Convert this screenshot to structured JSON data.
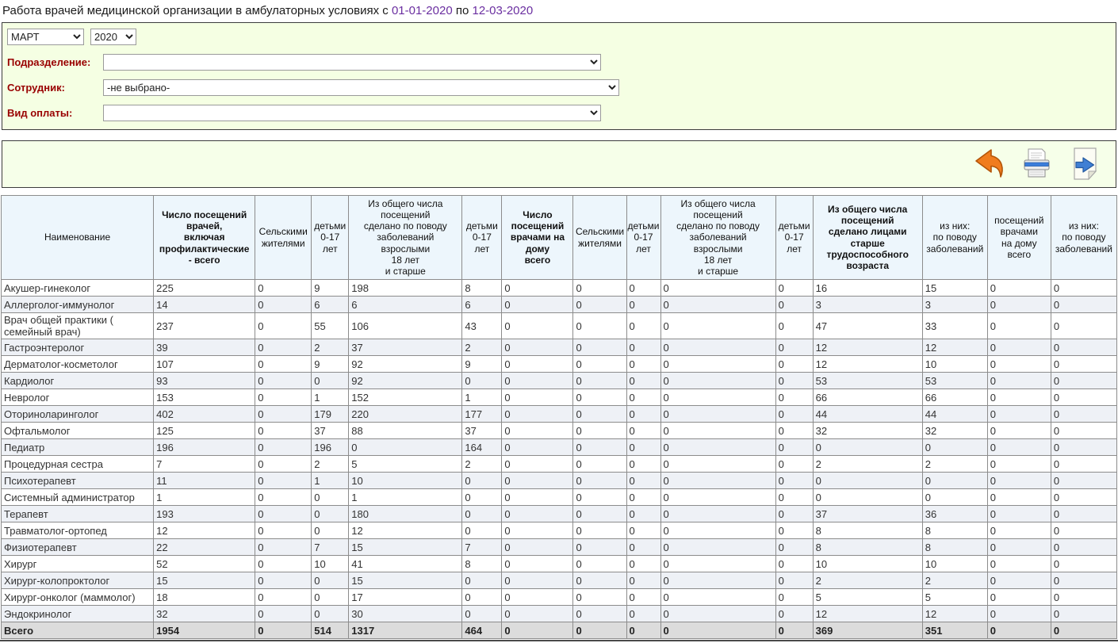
{
  "title": {
    "prefix": "Работа врачей медицинской организации в амбулаторных условиях с",
    "date_from": "01-01-2020",
    "to_word": "по",
    "date_to": "12-03-2020"
  },
  "filters": {
    "month": {
      "value": "МАРТ"
    },
    "year": {
      "value": "2020"
    },
    "department": {
      "label": "Подразделение:",
      "value": ""
    },
    "employee": {
      "label": "Сотрудник:",
      "value": "-не выбрано-"
    },
    "payment": {
      "label": "Вид оплаты:",
      "value": ""
    }
  },
  "toolbar": {
    "icons": [
      "back-arrow",
      "print",
      "export"
    ]
  },
  "table": {
    "headers": [
      {
        "text": "Наименование",
        "bold": false
      },
      {
        "text": "Число посещений\nврачей,\nвключая\nпрофилактические\n- всего",
        "bold": true
      },
      {
        "text": "Сельскими\nжителями",
        "bold": false
      },
      {
        "text": "детьми\n0-17\nлет",
        "bold": false
      },
      {
        "text": "Из общего числа\nпосещений\nсделано по поводу\nзаболеваний\nвзрослыми\n18 лет\nи старше",
        "bold": false
      },
      {
        "text": "детьми\n0-17\nлет",
        "bold": false
      },
      {
        "text": "Число\nпосещений\nврачами на\nдому\nвсего",
        "bold": true
      },
      {
        "text": "Сельскими\nжителями",
        "bold": false
      },
      {
        "text": "детьми\n0-17\nлет",
        "bold": false
      },
      {
        "text": "Из общего числа\nпосещений\nсделано по поводу\nзаболеваний\nвзрослыми\n18 лет\nи старше",
        "bold": false
      },
      {
        "text": "детьми\n0-17\nлет",
        "bold": false
      },
      {
        "text": "Из общего числа\nпосещений\nсделано лицами\nстарше\nтрудоспособного\nвозраста",
        "bold": true
      },
      {
        "text": "из них:\nпо поводу\nзаболеваний",
        "bold": false
      },
      {
        "text": "посещений\nврачами\nна дому\nвсего",
        "bold": false
      },
      {
        "text": "из них:\nпо поводу\nзаболеваний",
        "bold": false
      }
    ],
    "rows": [
      {
        "name": "Акушер-гинеколог",
        "values": [
          225,
          0,
          9,
          198,
          8,
          0,
          0,
          0,
          0,
          0,
          16,
          15,
          0,
          0
        ]
      },
      {
        "name": "Аллерголог-иммунолог",
        "values": [
          14,
          0,
          6,
          6,
          6,
          0,
          0,
          0,
          0,
          0,
          3,
          3,
          0,
          0
        ]
      },
      {
        "name": "Врач общей практики ( семейный врач)",
        "values": [
          237,
          0,
          55,
          106,
          43,
          0,
          0,
          0,
          0,
          0,
          47,
          33,
          0,
          0
        ]
      },
      {
        "name": "Гастроэнтеролог",
        "values": [
          39,
          0,
          2,
          37,
          2,
          0,
          0,
          0,
          0,
          0,
          12,
          12,
          0,
          0
        ]
      },
      {
        "name": "Дерматолог-косметолог",
        "values": [
          107,
          0,
          9,
          92,
          9,
          0,
          0,
          0,
          0,
          0,
          12,
          10,
          0,
          0
        ]
      },
      {
        "name": "Кардиолог",
        "values": [
          93,
          0,
          0,
          92,
          0,
          0,
          0,
          0,
          0,
          0,
          53,
          53,
          0,
          0
        ]
      },
      {
        "name": "Невролог",
        "values": [
          153,
          0,
          1,
          152,
          1,
          0,
          0,
          0,
          0,
          0,
          66,
          66,
          0,
          0
        ]
      },
      {
        "name": "Оториноларинголог",
        "values": [
          402,
          0,
          179,
          220,
          177,
          0,
          0,
          0,
          0,
          0,
          44,
          44,
          0,
          0
        ]
      },
      {
        "name": "Офтальмолог",
        "values": [
          125,
          0,
          37,
          88,
          37,
          0,
          0,
          0,
          0,
          0,
          32,
          32,
          0,
          0
        ]
      },
      {
        "name": "Педиатр",
        "values": [
          196,
          0,
          196,
          0,
          164,
          0,
          0,
          0,
          0,
          0,
          0,
          0,
          0,
          0
        ]
      },
      {
        "name": "Процедурная сестра",
        "values": [
          7,
          0,
          2,
          5,
          2,
          0,
          0,
          0,
          0,
          0,
          2,
          2,
          0,
          0
        ]
      },
      {
        "name": "Психотерапевт",
        "values": [
          11,
          0,
          1,
          10,
          0,
          0,
          0,
          0,
          0,
          0,
          0,
          0,
          0,
          0
        ]
      },
      {
        "name": "Системный администратор",
        "values": [
          1,
          0,
          0,
          1,
          0,
          0,
          0,
          0,
          0,
          0,
          0,
          0,
          0,
          0
        ]
      },
      {
        "name": "Терапевт",
        "values": [
          193,
          0,
          0,
          180,
          0,
          0,
          0,
          0,
          0,
          0,
          37,
          36,
          0,
          0
        ]
      },
      {
        "name": "Травматолог-ортопед",
        "values": [
          12,
          0,
          0,
          12,
          0,
          0,
          0,
          0,
          0,
          0,
          8,
          8,
          0,
          0
        ]
      },
      {
        "name": "Физиотерапевт",
        "values": [
          22,
          0,
          7,
          15,
          7,
          0,
          0,
          0,
          0,
          0,
          8,
          8,
          0,
          0
        ]
      },
      {
        "name": "Хирург",
        "values": [
          52,
          0,
          10,
          41,
          8,
          0,
          0,
          0,
          0,
          0,
          10,
          10,
          0,
          0
        ]
      },
      {
        "name": "Хирург-колопроктолог",
        "values": [
          15,
          0,
          0,
          15,
          0,
          0,
          0,
          0,
          0,
          0,
          2,
          2,
          0,
          0
        ]
      },
      {
        "name": "Хирург-онколог (маммолог)",
        "values": [
          18,
          0,
          0,
          17,
          0,
          0,
          0,
          0,
          0,
          0,
          5,
          5,
          0,
          0
        ]
      },
      {
        "name": "Эндокринолог",
        "values": [
          32,
          0,
          0,
          30,
          0,
          0,
          0,
          0,
          0,
          0,
          12,
          12,
          0,
          0
        ]
      }
    ],
    "total": {
      "name": "Всего",
      "values": [
        1954,
        0,
        514,
        1317,
        464,
        0,
        0,
        0,
        0,
        0,
        369,
        351,
        0,
        0
      ]
    }
  },
  "colors": {
    "label_red": "#990000",
    "date_purple": "#6a2ea0",
    "panel_green": "#f5ffe3",
    "header_blue": "#edf6fc",
    "alt_row": "#eef1f6",
    "total_gray": "#dcdcdc",
    "back_arrow_orange": "#f07c1e",
    "export_arrow_blue": "#3f7fd4"
  }
}
